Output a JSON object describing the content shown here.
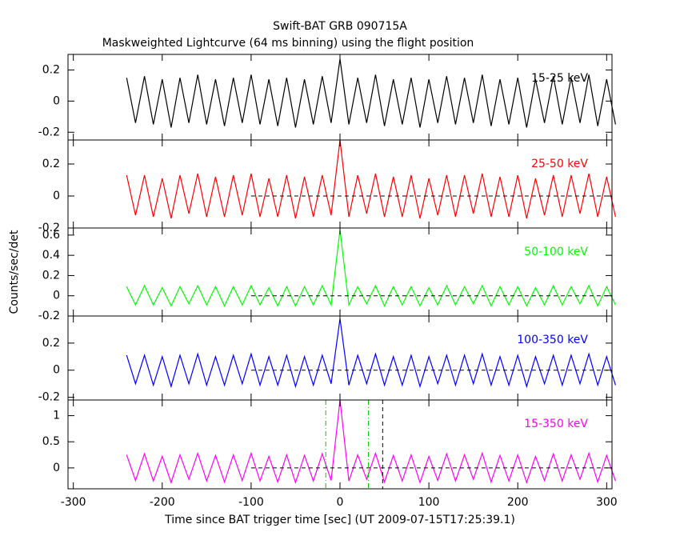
{
  "chart_data": [
    {
      "type": "line",
      "title": "Swift-BAT GRB 090715A",
      "subtitle": "Maskweighted Lightcurve (64 ms binning) using the flight position",
      "label": "15-25 keV",
      "color": "#000000",
      "x": [
        -240,
        -230,
        -220,
        -210,
        -200,
        -190,
        -180,
        -170,
        -160,
        -150,
        -140,
        -130,
        -120,
        -110,
        -100,
        -90,
        -80,
        -70,
        -60,
        -50,
        -40,
        -30,
        -20,
        -10,
        0,
        10,
        20,
        30,
        40,
        50,
        60,
        70,
        80,
        90,
        100,
        110,
        120,
        130,
        140,
        150,
        160,
        170,
        180,
        190,
        200,
        210,
        220,
        230,
        240,
        250,
        260,
        270,
        280,
        290,
        300,
        310
      ],
      "values": [
        0.15,
        -0.14,
        0.16,
        -0.15,
        0.14,
        -0.17,
        0.15,
        -0.14,
        0.17,
        -0.15,
        0.14,
        -0.16,
        0.15,
        -0.14,
        0.17,
        -0.15,
        0.14,
        -0.16,
        0.15,
        -0.17,
        0.14,
        -0.15,
        0.16,
        -0.14,
        0.27,
        -0.15,
        0.15,
        -0.14,
        0.17,
        -0.16,
        0.14,
        -0.15,
        0.15,
        -0.17,
        0.14,
        -0.14,
        0.16,
        -0.15,
        0.15,
        -0.14,
        0.17,
        -0.16,
        0.14,
        -0.15,
        0.15,
        -0.17,
        0.14,
        -0.14,
        0.16,
        -0.15,
        0.15,
        -0.14,
        0.17,
        -0.16,
        0.14,
        -0.15
      ],
      "xlim": [
        -306,
        306
      ],
      "xticks": [
        -300,
        -200,
        -100,
        0,
        100,
        200,
        300
      ],
      "ylim": [
        -0.25,
        0.3
      ],
      "yticks": [
        -0.2,
        0,
        0.2
      ]
    },
    {
      "type": "line",
      "label": "25-50 keV",
      "color": "#ff0000",
      "x": [
        -240,
        -230,
        -220,
        -210,
        -200,
        -190,
        -180,
        -170,
        -160,
        -150,
        -140,
        -130,
        -120,
        -110,
        -100,
        -90,
        -80,
        -70,
        -60,
        -50,
        -40,
        -30,
        -20,
        -10,
        0,
        10,
        20,
        30,
        40,
        50,
        60,
        70,
        80,
        90,
        100,
        110,
        120,
        130,
        140,
        150,
        160,
        170,
        180,
        190,
        200,
        210,
        220,
        230,
        240,
        250,
        260,
        270,
        280,
        290,
        300,
        310
      ],
      "values": [
        0.13,
        -0.12,
        0.13,
        -0.13,
        0.11,
        -0.14,
        0.13,
        -0.11,
        0.14,
        -0.13,
        0.12,
        -0.13,
        0.13,
        -0.12,
        0.14,
        -0.13,
        0.11,
        -0.13,
        0.13,
        -0.14,
        0.12,
        -0.13,
        0.13,
        -0.12,
        0.35,
        -0.13,
        0.13,
        -0.11,
        0.14,
        -0.13,
        0.12,
        -0.13,
        0.13,
        -0.14,
        0.11,
        -0.12,
        0.13,
        -0.13,
        0.13,
        -0.11,
        0.14,
        -0.13,
        0.12,
        -0.13,
        0.13,
        -0.14,
        0.11,
        -0.12,
        0.13,
        -0.13,
        0.13,
        -0.11,
        0.14,
        -0.13,
        0.12,
        -0.13
      ],
      "xlim": [
        -306,
        306
      ],
      "xticks": [
        -300,
        -200,
        -100,
        0,
        100,
        200,
        300
      ],
      "ylim": [
        -0.2,
        0.35
      ],
      "yticks": [
        -0.2,
        0,
        0.2
      ],
      "hline": {
        "y": 0,
        "from": -100
      }
    },
    {
      "type": "line",
      "label": "50-100 keV",
      "color": "#00ff00",
      "ylabel": "Counts/sec/det",
      "x": [
        -240,
        -230,
        -220,
        -210,
        -200,
        -190,
        -180,
        -170,
        -160,
        -150,
        -140,
        -130,
        -120,
        -110,
        -100,
        -90,
        -80,
        -70,
        -60,
        -50,
        -40,
        -30,
        -20,
        -10,
        0,
        10,
        20,
        30,
        40,
        50,
        60,
        70,
        80,
        90,
        100,
        110,
        120,
        130,
        140,
        150,
        160,
        170,
        180,
        190,
        200,
        210,
        220,
        230,
        240,
        250,
        260,
        270,
        280,
        290,
        300,
        310
      ],
      "values": [
        0.09,
        -0.09,
        0.1,
        -0.09,
        0.08,
        -0.1,
        0.09,
        -0.08,
        0.1,
        -0.09,
        0.09,
        -0.1,
        0.09,
        -0.09,
        0.1,
        -0.09,
        0.08,
        -0.1,
        0.09,
        -0.1,
        0.09,
        -0.09,
        0.1,
        -0.09,
        0.65,
        -0.09,
        0.09,
        -0.08,
        0.1,
        -0.1,
        0.09,
        -0.09,
        0.09,
        -0.1,
        0.08,
        -0.09,
        0.1,
        -0.09,
        0.09,
        -0.08,
        0.1,
        -0.1,
        0.09,
        -0.09,
        0.09,
        -0.1,
        0.08,
        -0.09,
        0.1,
        -0.09,
        0.09,
        -0.08,
        0.1,
        -0.1,
        0.09,
        -0.09
      ],
      "xlim": [
        -306,
        306
      ],
      "xticks": [
        -300,
        -200,
        -100,
        0,
        100,
        200,
        300
      ],
      "ylim": [
        -0.2,
        0.67
      ],
      "yticks": [
        -0.2,
        0,
        0.2,
        0.4,
        0.6
      ],
      "hline": {
        "y": 0,
        "from": -100
      }
    },
    {
      "type": "line",
      "label": "100-350 keV",
      "color": "#0000ff",
      "x": [
        -240,
        -230,
        -220,
        -210,
        -200,
        -190,
        -180,
        -170,
        -160,
        -150,
        -140,
        -130,
        -120,
        -110,
        -100,
        -90,
        -80,
        -70,
        -60,
        -50,
        -40,
        -30,
        -20,
        -10,
        0,
        10,
        20,
        30,
        40,
        50,
        60,
        70,
        80,
        90,
        100,
        110,
        120,
        130,
        140,
        150,
        160,
        170,
        180,
        190,
        200,
        210,
        220,
        230,
        240,
        250,
        260,
        270,
        280,
        290,
        300,
        310
      ],
      "values": [
        0.11,
        -0.1,
        0.11,
        -0.11,
        0.1,
        -0.12,
        0.11,
        -0.1,
        0.12,
        -0.11,
        0.1,
        -0.11,
        0.11,
        -0.1,
        0.12,
        -0.11,
        0.1,
        -0.11,
        0.11,
        -0.12,
        0.1,
        -0.11,
        0.11,
        -0.1,
        0.38,
        -0.11,
        0.11,
        -0.1,
        0.12,
        -0.11,
        0.1,
        -0.11,
        0.11,
        -0.12,
        0.1,
        -0.1,
        0.11,
        -0.11,
        0.11,
        -0.1,
        0.12,
        -0.11,
        0.1,
        -0.11,
        0.11,
        -0.12,
        0.1,
        -0.1,
        0.11,
        -0.11,
        0.11,
        -0.1,
        0.12,
        -0.11,
        0.1,
        -0.11
      ],
      "xlim": [
        -306,
        306
      ],
      "xticks": [
        -300,
        -200,
        -100,
        0,
        100,
        200,
        300
      ],
      "ylim": [
        -0.22,
        0.4
      ],
      "yticks": [
        -0.2,
        0,
        0.2
      ],
      "hline": {
        "y": 0,
        "from": -100
      }
    },
    {
      "type": "line",
      "label": "15-350 keV",
      "color": "#ff00ff",
      "xlabel": "Time since BAT trigger time [sec] (UT 2009-07-15T17:25:39.1)",
      "x": [
        -240,
        -230,
        -220,
        -210,
        -200,
        -190,
        -180,
        -170,
        -160,
        -150,
        -140,
        -130,
        -120,
        -110,
        -100,
        -90,
        -80,
        -70,
        -60,
        -50,
        -40,
        -30,
        -20,
        -10,
        0,
        10,
        20,
        30,
        40,
        50,
        60,
        70,
        80,
        90,
        100,
        110,
        120,
        130,
        140,
        150,
        160,
        170,
        180,
        190,
        200,
        210,
        220,
        230,
        240,
        250,
        260,
        270,
        280,
        290,
        300,
        310
      ],
      "values": [
        0.25,
        -0.24,
        0.27,
        -0.25,
        0.22,
        -0.28,
        0.25,
        -0.22,
        0.28,
        -0.25,
        0.24,
        -0.27,
        0.25,
        -0.24,
        0.28,
        -0.25,
        0.22,
        -0.27,
        0.25,
        -0.28,
        0.24,
        -0.25,
        0.27,
        -0.24,
        1.3,
        -0.25,
        0.25,
        -0.22,
        0.28,
        -0.27,
        0.24,
        -0.25,
        0.25,
        -0.28,
        0.22,
        -0.24,
        0.27,
        -0.25,
        0.25,
        -0.22,
        0.28,
        -0.27,
        0.24,
        -0.25,
        0.25,
        -0.28,
        0.22,
        -0.24,
        0.27,
        -0.25,
        0.25,
        -0.22,
        0.28,
        -0.27,
        0.24,
        -0.25
      ],
      "xlim": [
        -306,
        306
      ],
      "xticks": [
        -300,
        -200,
        -100,
        0,
        100,
        200,
        300
      ],
      "ylim": [
        -0.4,
        1.3
      ],
      "yticks": [
        0,
        0.5,
        1
      ],
      "hline": {
        "y": 0,
        "from": -100
      },
      "vlines": [
        {
          "x": -16,
          "color": "#00cc00",
          "style": "dashdot"
        },
        {
          "x": 32,
          "color": "#00cc00",
          "style": "dashdot"
        },
        {
          "x": 48,
          "color": "#000000",
          "style": "dashed"
        }
      ]
    }
  ]
}
